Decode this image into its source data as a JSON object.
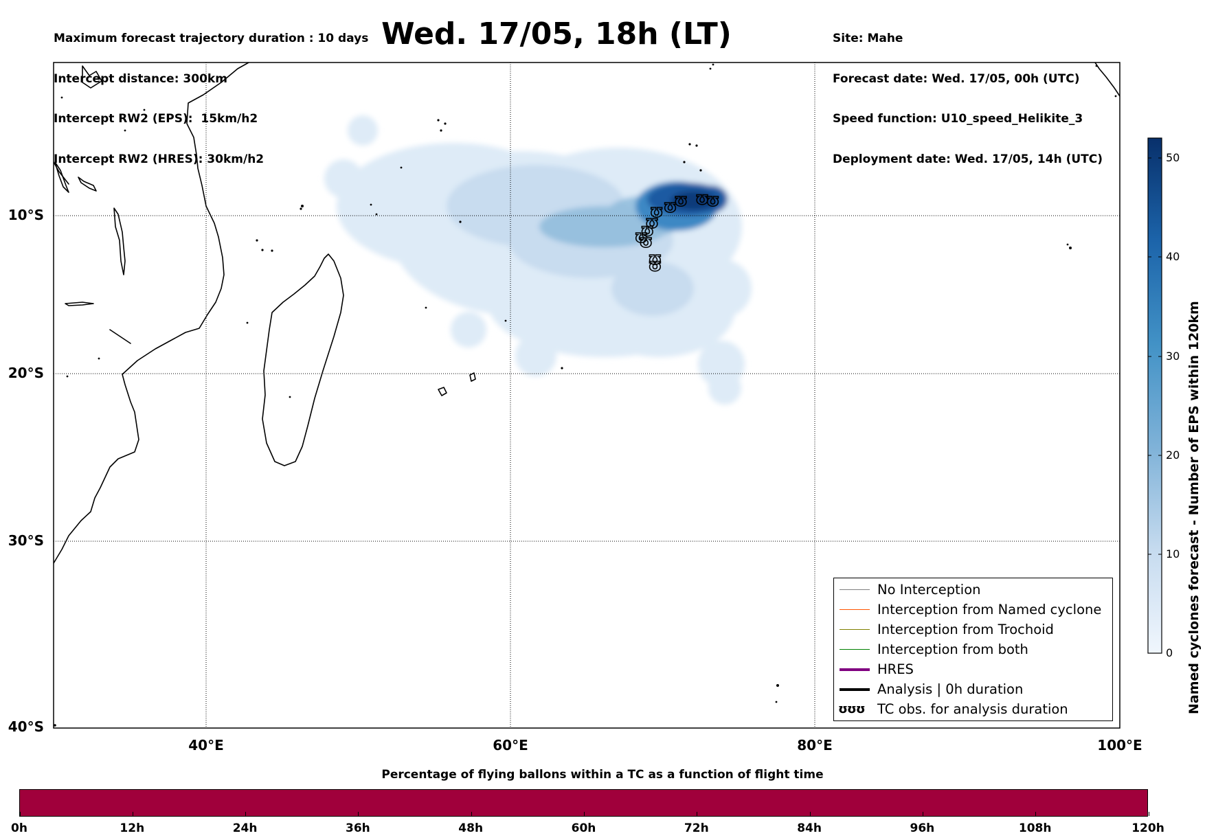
{
  "header": {
    "left_lines": [
      "Maximum forecast trajectory duration : 10 days",
      "Intercept distance: 300km",
      "Intercept RW2 (EPS):  15km/h2",
      "Intercept RW2 (HRES): 30km/h2"
    ],
    "right_lines": [
      "Site: Mahe",
      "Forecast date: Wed. 17/05, 00h (UTC)",
      "Speed function: U10_speed_Helikite_3",
      "Deployment date: Wed. 17/05, 14h (UTC)"
    ],
    "title": "Wed. 17/05, 18h (LT)"
  },
  "map": {
    "lon_range": [
      30,
      100
    ],
    "lat_range": [
      -40,
      0
    ],
    "lat_labels": [
      "10°S",
      "20°S",
      "30°S",
      "40°S"
    ],
    "lon_labels": [
      "40°E",
      "60°E",
      "80°E",
      "100°E"
    ],
    "gridline_style": "dotted",
    "colors": {
      "density_light": "#deebf7",
      "density_dark": "#08306b",
      "coastline": "#000000"
    }
  },
  "colorbar": {
    "title": "Named cyclones forecast - Number of EPS within 120km",
    "ticks": [
      "0",
      "10",
      "20",
      "30",
      "40",
      "50"
    ],
    "min": 0,
    "max": 52
  },
  "legend": {
    "items": [
      {
        "label": "No Interception",
        "color": "#808080"
      },
      {
        "label": "Interception from Named cyclone",
        "color": "#ff5500"
      },
      {
        "label": "Interception from Trochoid",
        "color": "#808000"
      },
      {
        "label": "Interception from both",
        "color": "#008000"
      },
      {
        "label": "HRES",
        "color": "#800080"
      },
      {
        "label": "Analysis | 0h duration",
        "color": "#000000"
      },
      {
        "label": "TC obs. for analysis duration",
        "icon": "ʊʊʊ"
      }
    ]
  },
  "tc_track": [
    {
      "lon": 73.3,
      "lat": -9.0
    },
    {
      "lon": 72.6,
      "lat": -8.9
    },
    {
      "lon": 71.2,
      "lat": -9.0
    },
    {
      "lon": 70.5,
      "lat": -9.4
    },
    {
      "lon": 69.6,
      "lat": -9.7
    },
    {
      "lon": 69.3,
      "lat": -10.4
    },
    {
      "lon": 69.0,
      "lat": -10.9
    },
    {
      "lon": 68.6,
      "lat": -11.3
    },
    {
      "lon": 68.9,
      "lat": -11.6
    },
    {
      "lon": 69.5,
      "lat": -12.7
    },
    {
      "lon": 69.5,
      "lat": -13.1
    }
  ],
  "time_bar": {
    "title": "Percentage of flying ballons within a TC as a function of flight time",
    "color": "#a0003b",
    "ticks": [
      "0h",
      "12h",
      "24h",
      "36h",
      "48h",
      "60h",
      "72h",
      "84h",
      "96h",
      "108h",
      "120h"
    ]
  }
}
